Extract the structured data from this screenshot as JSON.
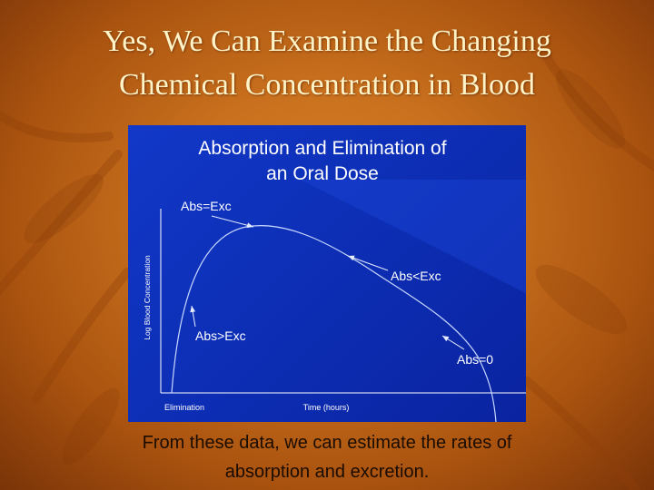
{
  "slide": {
    "title_line1": "Yes, We Can Examine the Changing",
    "title_line2": "Chemical Concentration in Blood",
    "caption_line1": "From these data, we can estimate the rates of",
    "caption_line2": "absorption and excretion."
  },
  "colors": {
    "background": "#c8701d",
    "title_text": "#fff3c8",
    "chart_background": "#0d2fb6",
    "chart_text": "#ffffff",
    "curve": "#c8d8ff"
  },
  "chart_data": {
    "type": "line",
    "title_line1": "Absorption and Elimination of",
    "title_line2": "an Oral Dose",
    "xlabel": "Time (hours)",
    "ylabel": "Log Blood Concentration",
    "x_corner_label": "Elimination",
    "annotations": [
      "Abs=Exc",
      "Abs>Exc",
      "Abs<Exc",
      "Abs=0"
    ],
    "grid": false
  }
}
